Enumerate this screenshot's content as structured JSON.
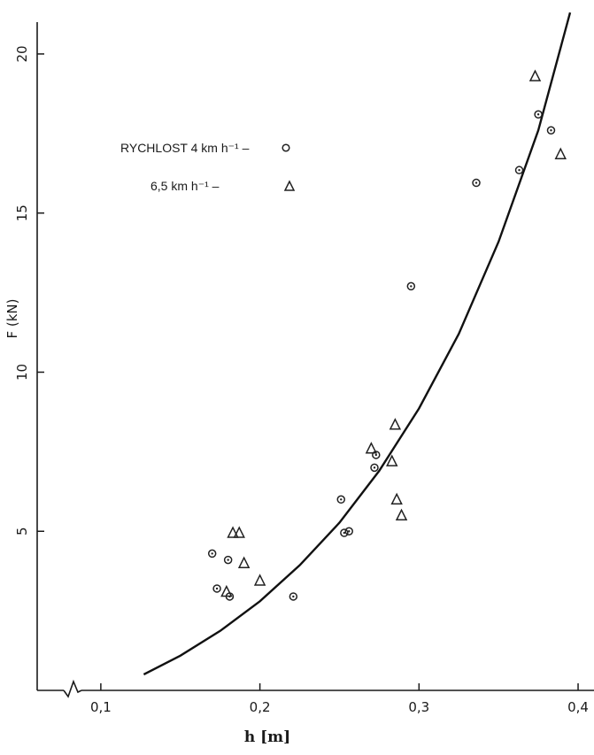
{
  "chart_data": {
    "type": "scatter",
    "title": "",
    "xlabel": "h  [m]",
    "ylabel": "F (kN)",
    "xlim": [
      0.06,
      0.41
    ],
    "ylim": [
      0,
      21
    ],
    "x_ticks": [
      0.1,
      0.2,
      0.3,
      0.4
    ],
    "x_tick_labels": [
      "0,1",
      "0,2",
      "0,3",
      "0,4"
    ],
    "y_ticks": [
      5,
      10,
      15,
      20
    ],
    "y_tick_labels": [
      "5",
      "10",
      "15",
      "20"
    ],
    "x_axis_break": true,
    "grid": false,
    "legend_position": "top-left",
    "legend": [
      {
        "label": "RYCHLOST  4 km h⁻¹ –",
        "marker": "circle"
      },
      {
        "label": "6,5 km h⁻¹ –",
        "marker": "triangle"
      }
    ],
    "series": [
      {
        "marker": "circle",
        "points": [
          [
            0.17,
            4.3
          ],
          [
            0.173,
            3.2
          ],
          [
            0.18,
            4.1
          ],
          [
            0.181,
            2.95
          ],
          [
            0.221,
            2.95
          ],
          [
            0.251,
            6.0
          ],
          [
            0.253,
            4.95
          ],
          [
            0.256,
            5.0
          ],
          [
            0.272,
            7.0
          ],
          [
            0.273,
            7.4
          ],
          [
            0.295,
            12.7
          ],
          [
            0.336,
            15.95
          ],
          [
            0.363,
            16.35
          ],
          [
            0.375,
            18.1
          ],
          [
            0.383,
            17.6
          ]
        ]
      },
      {
        "marker": "triangle",
        "points": [
          [
            0.179,
            3.1
          ],
          [
            0.183,
            4.95
          ],
          [
            0.187,
            4.95
          ],
          [
            0.19,
            4.0
          ],
          [
            0.2,
            3.45
          ],
          [
            0.27,
            7.6
          ],
          [
            0.283,
            7.2
          ],
          [
            0.285,
            8.35
          ],
          [
            0.286,
            6.0
          ],
          [
            0.289,
            5.5
          ],
          [
            0.373,
            19.3
          ],
          [
            0.389,
            16.85
          ]
        ]
      },
      {
        "name": "",
        "type": "line",
        "style": "fit-curve",
        "x": [
          0.127,
          0.15,
          0.175,
          0.2,
          0.225,
          0.25,
          0.275,
          0.3,
          0.325,
          0.35,
          0.375,
          0.395
        ],
        "y": [
          0.5,
          1.09,
          1.87,
          2.8,
          3.93,
          5.27,
          6.9,
          8.86,
          11.2,
          14.1,
          17.6,
          21.3
        ]
      }
    ]
  }
}
